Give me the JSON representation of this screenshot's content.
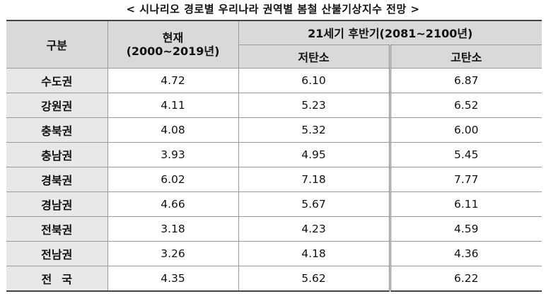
{
  "title": "< 시나리오 경로별 우리나라 권역별 봄철 산불기상지수 전망 >",
  "headers": {
    "category": "구분",
    "current_line1": "현재",
    "current_line2": "(2000~2019년)",
    "future": "21세기 후반기(2081~2100년)",
    "low_carbon": "저탄소",
    "high_carbon": "고탄소"
  },
  "rows": [
    {
      "region": "수도권",
      "current": "4.72",
      "low": "6.10",
      "high": "6.87"
    },
    {
      "region": "강원권",
      "current": "4.11",
      "low": "5.23",
      "high": "6.52"
    },
    {
      "region": "충북권",
      "current": "4.08",
      "low": "5.32",
      "high": "6.00"
    },
    {
      "region": "충남권",
      "current": "3.93",
      "low": "4.95",
      "high": "5.45"
    },
    {
      "region": "경북권",
      "current": "6.02",
      "low": "7.18",
      "high": "7.77"
    },
    {
      "region": "경남권",
      "current": "4.66",
      "low": "5.67",
      "high": "6.11"
    },
    {
      "region": "전북권",
      "current": "3.18",
      "low": "4.23",
      "high": "4.59"
    },
    {
      "region": "전남권",
      "current": "3.26",
      "low": "4.18",
      "high": "4.36"
    },
    {
      "region": "전국",
      "current": "4.35",
      "low": "5.62",
      "high": "6.22"
    }
  ]
}
